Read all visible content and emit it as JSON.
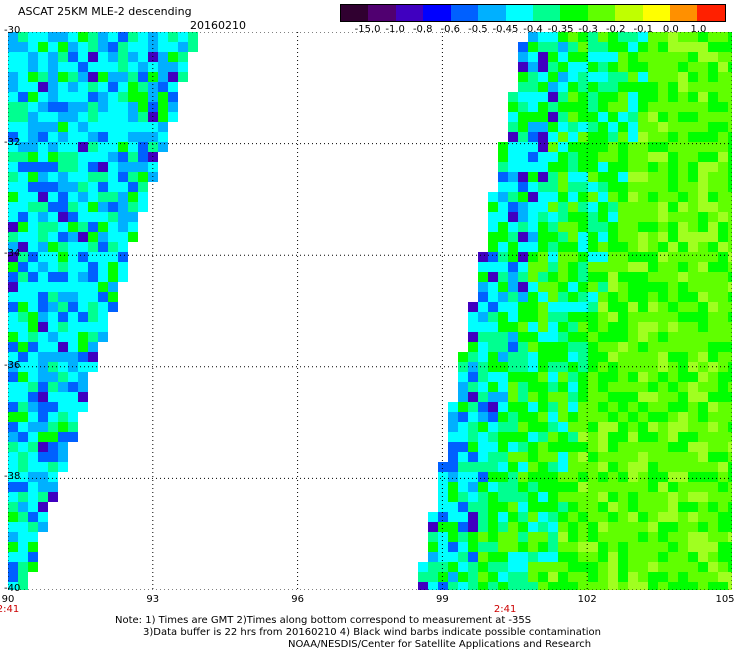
{
  "header": {
    "title": "ASCAT 25KM MLE-2 descending",
    "date": "20160210"
  },
  "colorbar": {
    "labels": [
      "-15.0",
      "-1.0",
      "-0.8",
      "-0.6",
      "-0.5",
      "-0.45",
      "-0.4",
      "-0.35",
      "-0.3",
      "-0.2",
      "-0.1",
      "0.0",
      "1.0"
    ],
    "colors": [
      "#300030",
      "#500070",
      "#4000c0",
      "#0000ff",
      "#0060ff",
      "#00b0ff",
      "#00ffff",
      "#00ff90",
      "#00ff00",
      "#60ff00",
      "#c0ff00",
      "#ffff00",
      "#ff9000",
      "#ff2000"
    ]
  },
  "map": {
    "lat_labels": [
      "-30",
      "-32",
      "-34",
      "-36",
      "-38",
      "-40"
    ],
    "lon_labels": [
      "90",
      "93",
      "96",
      "99",
      "102",
      "105"
    ],
    "lat_range": [
      -30,
      -40
    ],
    "lon_range": [
      90,
      105
    ],
    "time_labels": [
      {
        "lon": 90,
        "text": "2:41"
      },
      {
        "lon": 100.3,
        "text": "2:41"
      }
    ],
    "gridlines": true
  },
  "notes": {
    "line1": "Note: 1) Times are GMT 2)Times along bottom correspond to measurement at -35S",
    "line2": "3)Data buffer is 22 hrs from 20160210 4) Black wind barbs indicate possible contamination",
    "line3": "NOAA/NESDIS/Center for Satellite Applications and Research"
  }
}
